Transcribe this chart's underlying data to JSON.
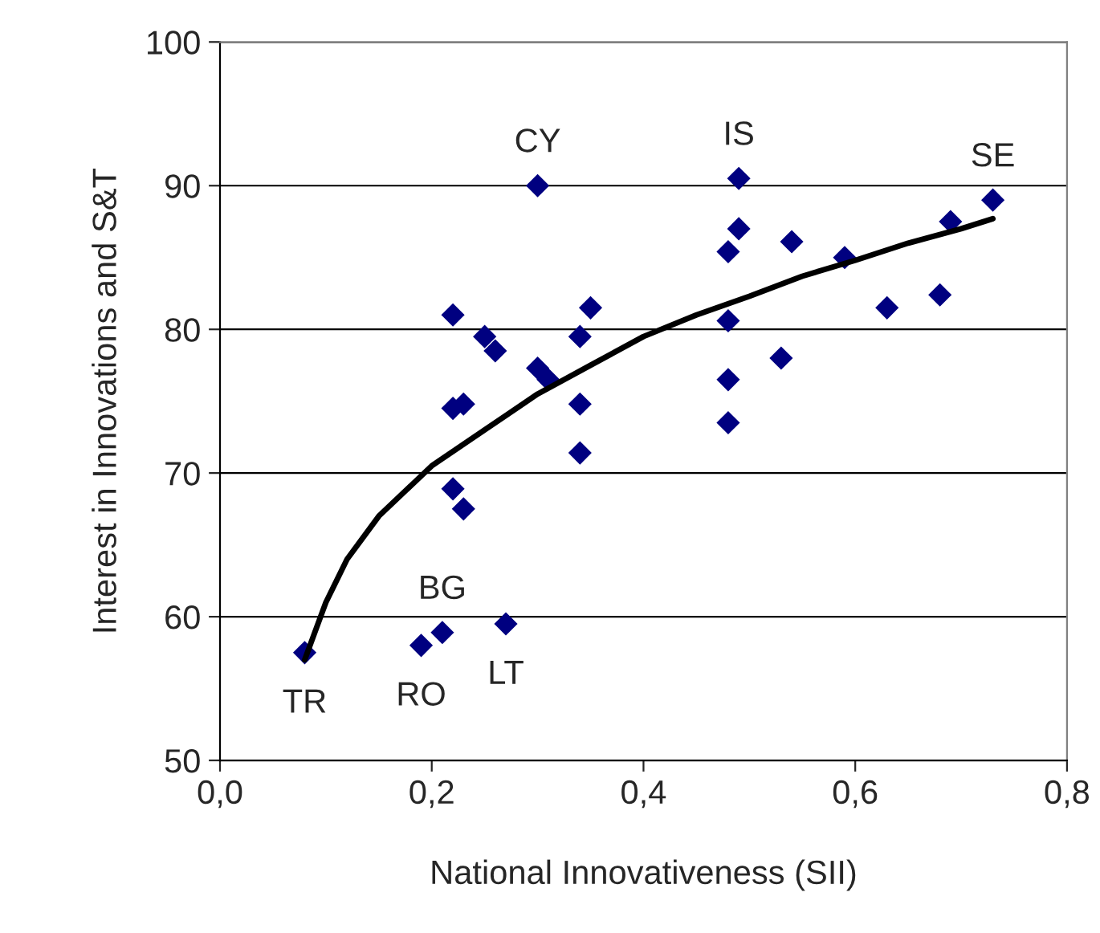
{
  "chart_data": {
    "type": "scatter",
    "xlabel": "National Innovativeness (SII)",
    "ylabel": "Interest in Innovations and S&T",
    "xlim": [
      0,
      0.8
    ],
    "ylim": [
      50,
      100
    ],
    "xticks": [
      {
        "value": 0,
        "label": "0,0"
      },
      {
        "value": 0.2,
        "label": "0,2"
      },
      {
        "value": 0.4,
        "label": "0,4"
      },
      {
        "value": 0.6,
        "label": "0,6"
      },
      {
        "value": 0.8,
        "label": "0,8"
      }
    ],
    "yticks": [
      50,
      60,
      70,
      80,
      90,
      100
    ],
    "grid": "y",
    "legend": false,
    "marker": "diamond",
    "series": [
      {
        "color": "#000080",
        "x": [
          0.08,
          0.19,
          0.21,
          0.27,
          0.22,
          0.23,
          0.22,
          0.23,
          0.22,
          0.25,
          0.26,
          0.3,
          0.31,
          0.3,
          0.34,
          0.35,
          0.34,
          0.34,
          0.48,
          0.49,
          0.49,
          0.48,
          0.48,
          0.48,
          0.53,
          0.54,
          0.59,
          0.63,
          0.68,
          0.69,
          0.73
        ],
        "values": [
          57.5,
          58,
          58.9,
          59.5,
          68.9,
          67.5,
          74.5,
          74.8,
          81,
          79.5,
          78.5,
          77.3,
          76.5,
          90,
          79.5,
          81.5,
          74.8,
          71.4,
          85.4,
          87,
          90.5,
          80.6,
          76.5,
          73.5,
          78,
          86.1,
          85,
          81.5,
          82.4,
          87.5,
          89
        ]
      },
      {
        "type": "line",
        "color": "#000000",
        "marker": "none",
        "x": [
          0.08,
          0.1,
          0.12,
          0.15,
          0.2,
          0.25,
          0.3,
          0.35,
          0.4,
          0.45,
          0.5,
          0.55,
          0.6,
          0.65,
          0.7,
          0.73
        ],
        "values": [
          57,
          61,
          64,
          67,
          70.5,
          73,
          75.5,
          77.5,
          79.5,
          81,
          82.3,
          83.7,
          84.8,
          86,
          87,
          87.7
        ]
      }
    ],
    "annotations": [
      {
        "text": "TR",
        "x": 0.08,
        "y": 57.5
      },
      {
        "text": "RO",
        "x": 0.19,
        "y": 58
      },
      {
        "text": "BG",
        "x": 0.21,
        "y": 58.9
      },
      {
        "text": "LT",
        "x": 0.27,
        "y": 59.5
      },
      {
        "text": "CY",
        "x": 0.3,
        "y": 90
      },
      {
        "text": "IS",
        "x": 0.49,
        "y": 90.5
      },
      {
        "text": "SE",
        "x": 0.73,
        "y": 89
      }
    ]
  }
}
